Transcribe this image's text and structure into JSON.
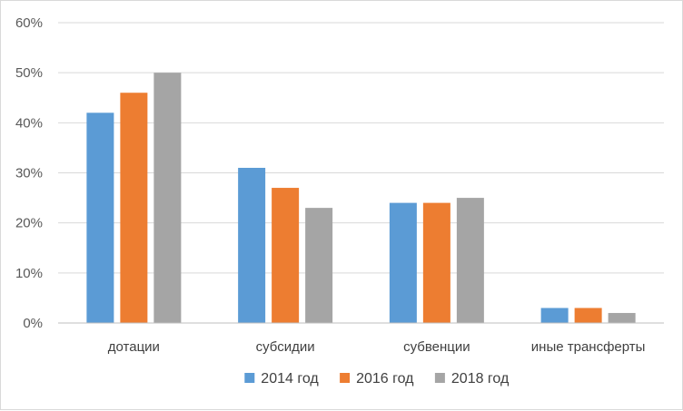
{
  "chart_data": {
    "type": "bar",
    "categories": [
      "дотации",
      "субсидии",
      "субвенции",
      "иные трансферты"
    ],
    "series": [
      {
        "name": "2014 год",
        "values": [
          42,
          31,
          24,
          3
        ],
        "color": "#5B9BD5"
      },
      {
        "name": "2016 год",
        "values": [
          46,
          27,
          24,
          3
        ],
        "color": "#ED7D31"
      },
      {
        "name": "2018 год",
        "values": [
          50,
          23,
          25,
          2
        ],
        "color": "#A5A5A5"
      }
    ],
    "y_ticks": [
      "0%",
      "10%",
      "20%",
      "30%",
      "40%",
      "50%",
      "60%"
    ],
    "ylim": [
      0,
      60
    ],
    "grid": true,
    "legend_position": "bottom",
    "gridline_color": "#d9d9d9",
    "axis_color": "#bfbfbf"
  }
}
